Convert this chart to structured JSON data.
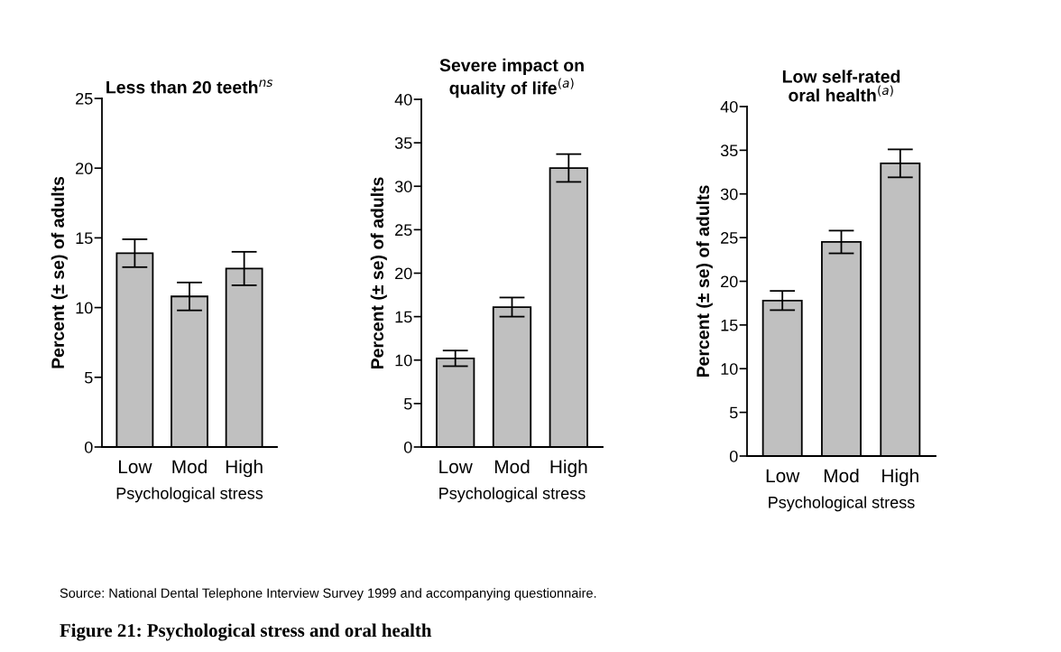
{
  "chart_data": [
    {
      "type": "bar",
      "title": "Less than 20 teeth$^{ns}$",
      "xlabel": "Psychological stress",
      "ylabel": "Percent (± se) of adults",
      "categories": [
        "Low",
        "Mod",
        "High"
      ],
      "values": [
        13.9,
        10.8,
        12.8
      ],
      "errors": [
        1.0,
        1.0,
        1.2
      ],
      "color": "#c0c0c0",
      "ylim": [
        0,
        25
      ],
      "yticks": [
        0,
        5,
        10,
        15,
        20,
        25
      ],
      "grid": false,
      "annotations": [
        "Source: National Dental Telephone Interview Survey 1999 and accompanying questionnaire.",
        "Figure 21: Psychological stress and oral health"
      ]
    },
    {
      "type": "bar",
      "title": "Severe impact on\nquality of life$^{(a)}$",
      "xlabel": "Psychological stress",
      "ylabel": "Percent (± se) of adults",
      "categories": [
        "Low",
        "Mod",
        "High"
      ],
      "values": [
        10.2,
        16.1,
        32.1
      ],
      "errors": [
        0.9,
        1.1,
        1.6
      ],
      "color": "#c0c0c0",
      "ylim": [
        0,
        40
      ],
      "yticks": [
        0,
        5,
        10,
        15,
        20,
        25,
        30,
        35,
        40
      ],
      "grid": false
    },
    {
      "type": "bar",
      "title": "Low self-rated\noral health$^{(a)}$",
      "xlabel": "Psychological stress",
      "ylabel": "Percent (± se) of adults",
      "categories": [
        "Low",
        "Mod",
        "High"
      ],
      "values": [
        17.8,
        24.5,
        33.5
      ],
      "errors": [
        1.1,
        1.3,
        1.6
      ],
      "color": "#c0c0c0",
      "ylim": [
        0,
        40
      ],
      "yticks": [
        0,
        5,
        10,
        15,
        20,
        25,
        30,
        35,
        40
      ],
      "grid": false
    }
  ]
}
